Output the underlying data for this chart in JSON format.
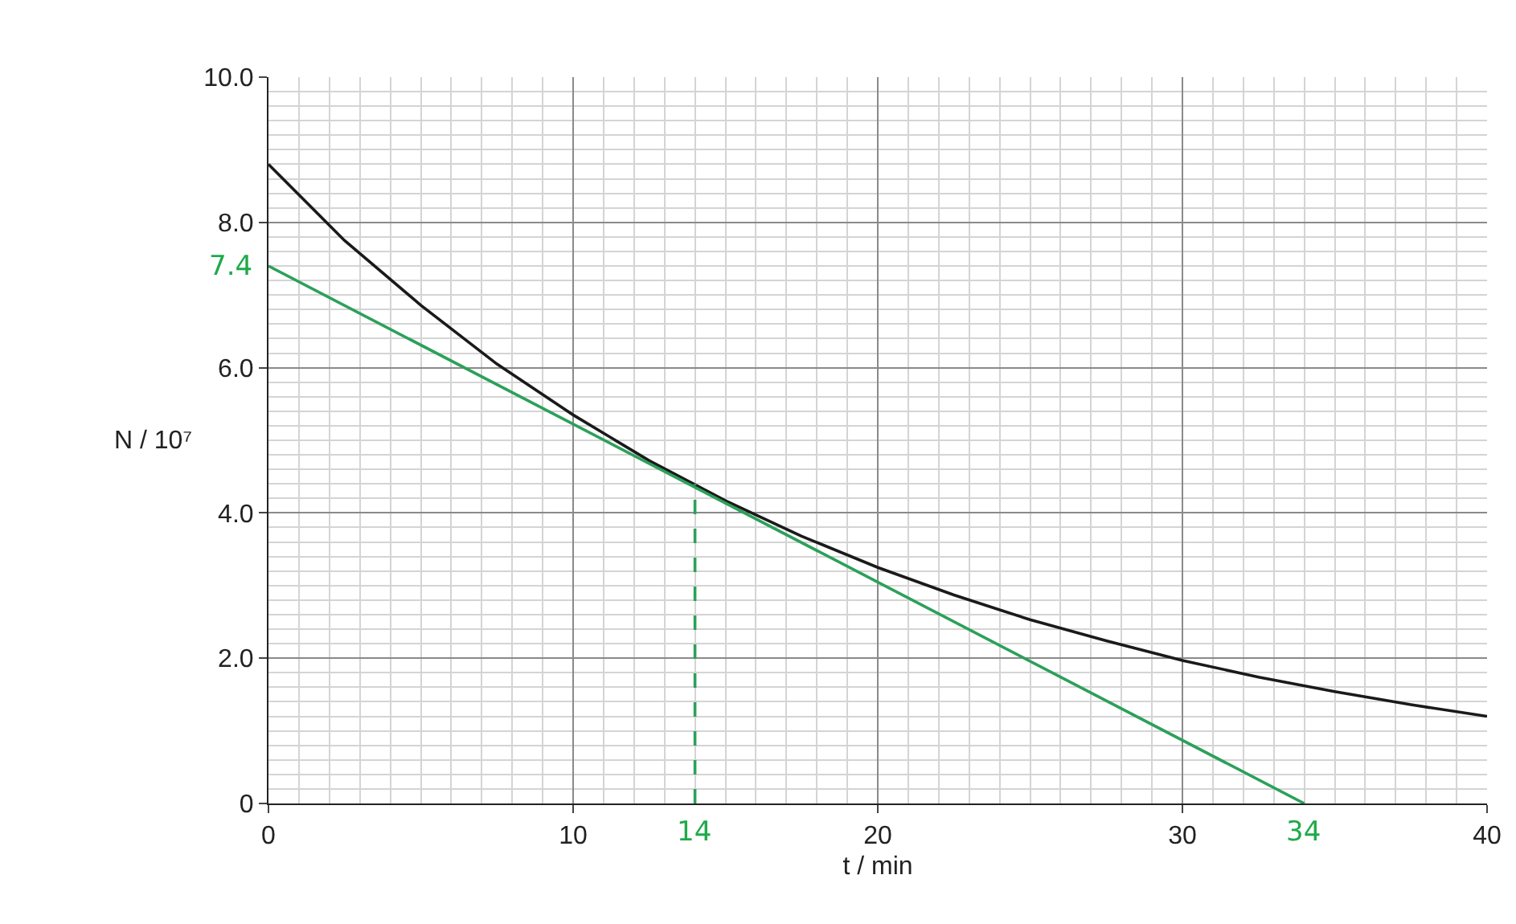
{
  "chart_data": {
    "type": "line",
    "xlabel": "t / min",
    "ylabel": "N / 10⁷",
    "xlim": [
      0,
      40
    ],
    "xticks": [
      0,
      10,
      20,
      30,
      40
    ],
    "ylim": [
      0,
      10
    ],
    "yticks": [
      0,
      {
        "value": 2,
        "label": "2.0"
      },
      {
        "value": 4,
        "label": "4.0"
      },
      {
        "value": 6,
        "label": "6.0"
      },
      {
        "value": 8,
        "label": "8.0"
      },
      {
        "value": 10,
        "label": "10.0"
      }
    ],
    "grid": true,
    "line_style": "solid",
    "series": [
      {
        "color": "#1a1a1a",
        "x": [
          0,
          2.5,
          5,
          7.5,
          10,
          12.5,
          15,
          17.5,
          20,
          22.5,
          25,
          27.5,
          30,
          32.5,
          35,
          37.5,
          40
        ],
        "values": [
          8.8,
          7.75,
          6.86,
          6.05,
          5.35,
          4.72,
          4.17,
          3.68,
          3.25,
          2.87,
          2.53,
          2.24,
          1.97,
          1.74,
          1.54,
          1.36,
          1.2
        ]
      },
      {
        "color": "#2ca05a",
        "x": [
          0,
          34
        ],
        "values": [
          7.4,
          0
        ]
      },
      {
        "color": "#2ca05a",
        "x": [
          14,
          14
        ],
        "values": [
          0,
          4.4
        ],
        "line_style": "dashed"
      }
    ],
    "annotations": [
      {
        "text": "7.4",
        "x": 0,
        "y": 7.4
      },
      {
        "text": "14",
        "x": 14,
        "y": 0
      },
      {
        "text": "34",
        "x": 34,
        "y": 0
      }
    ]
  }
}
